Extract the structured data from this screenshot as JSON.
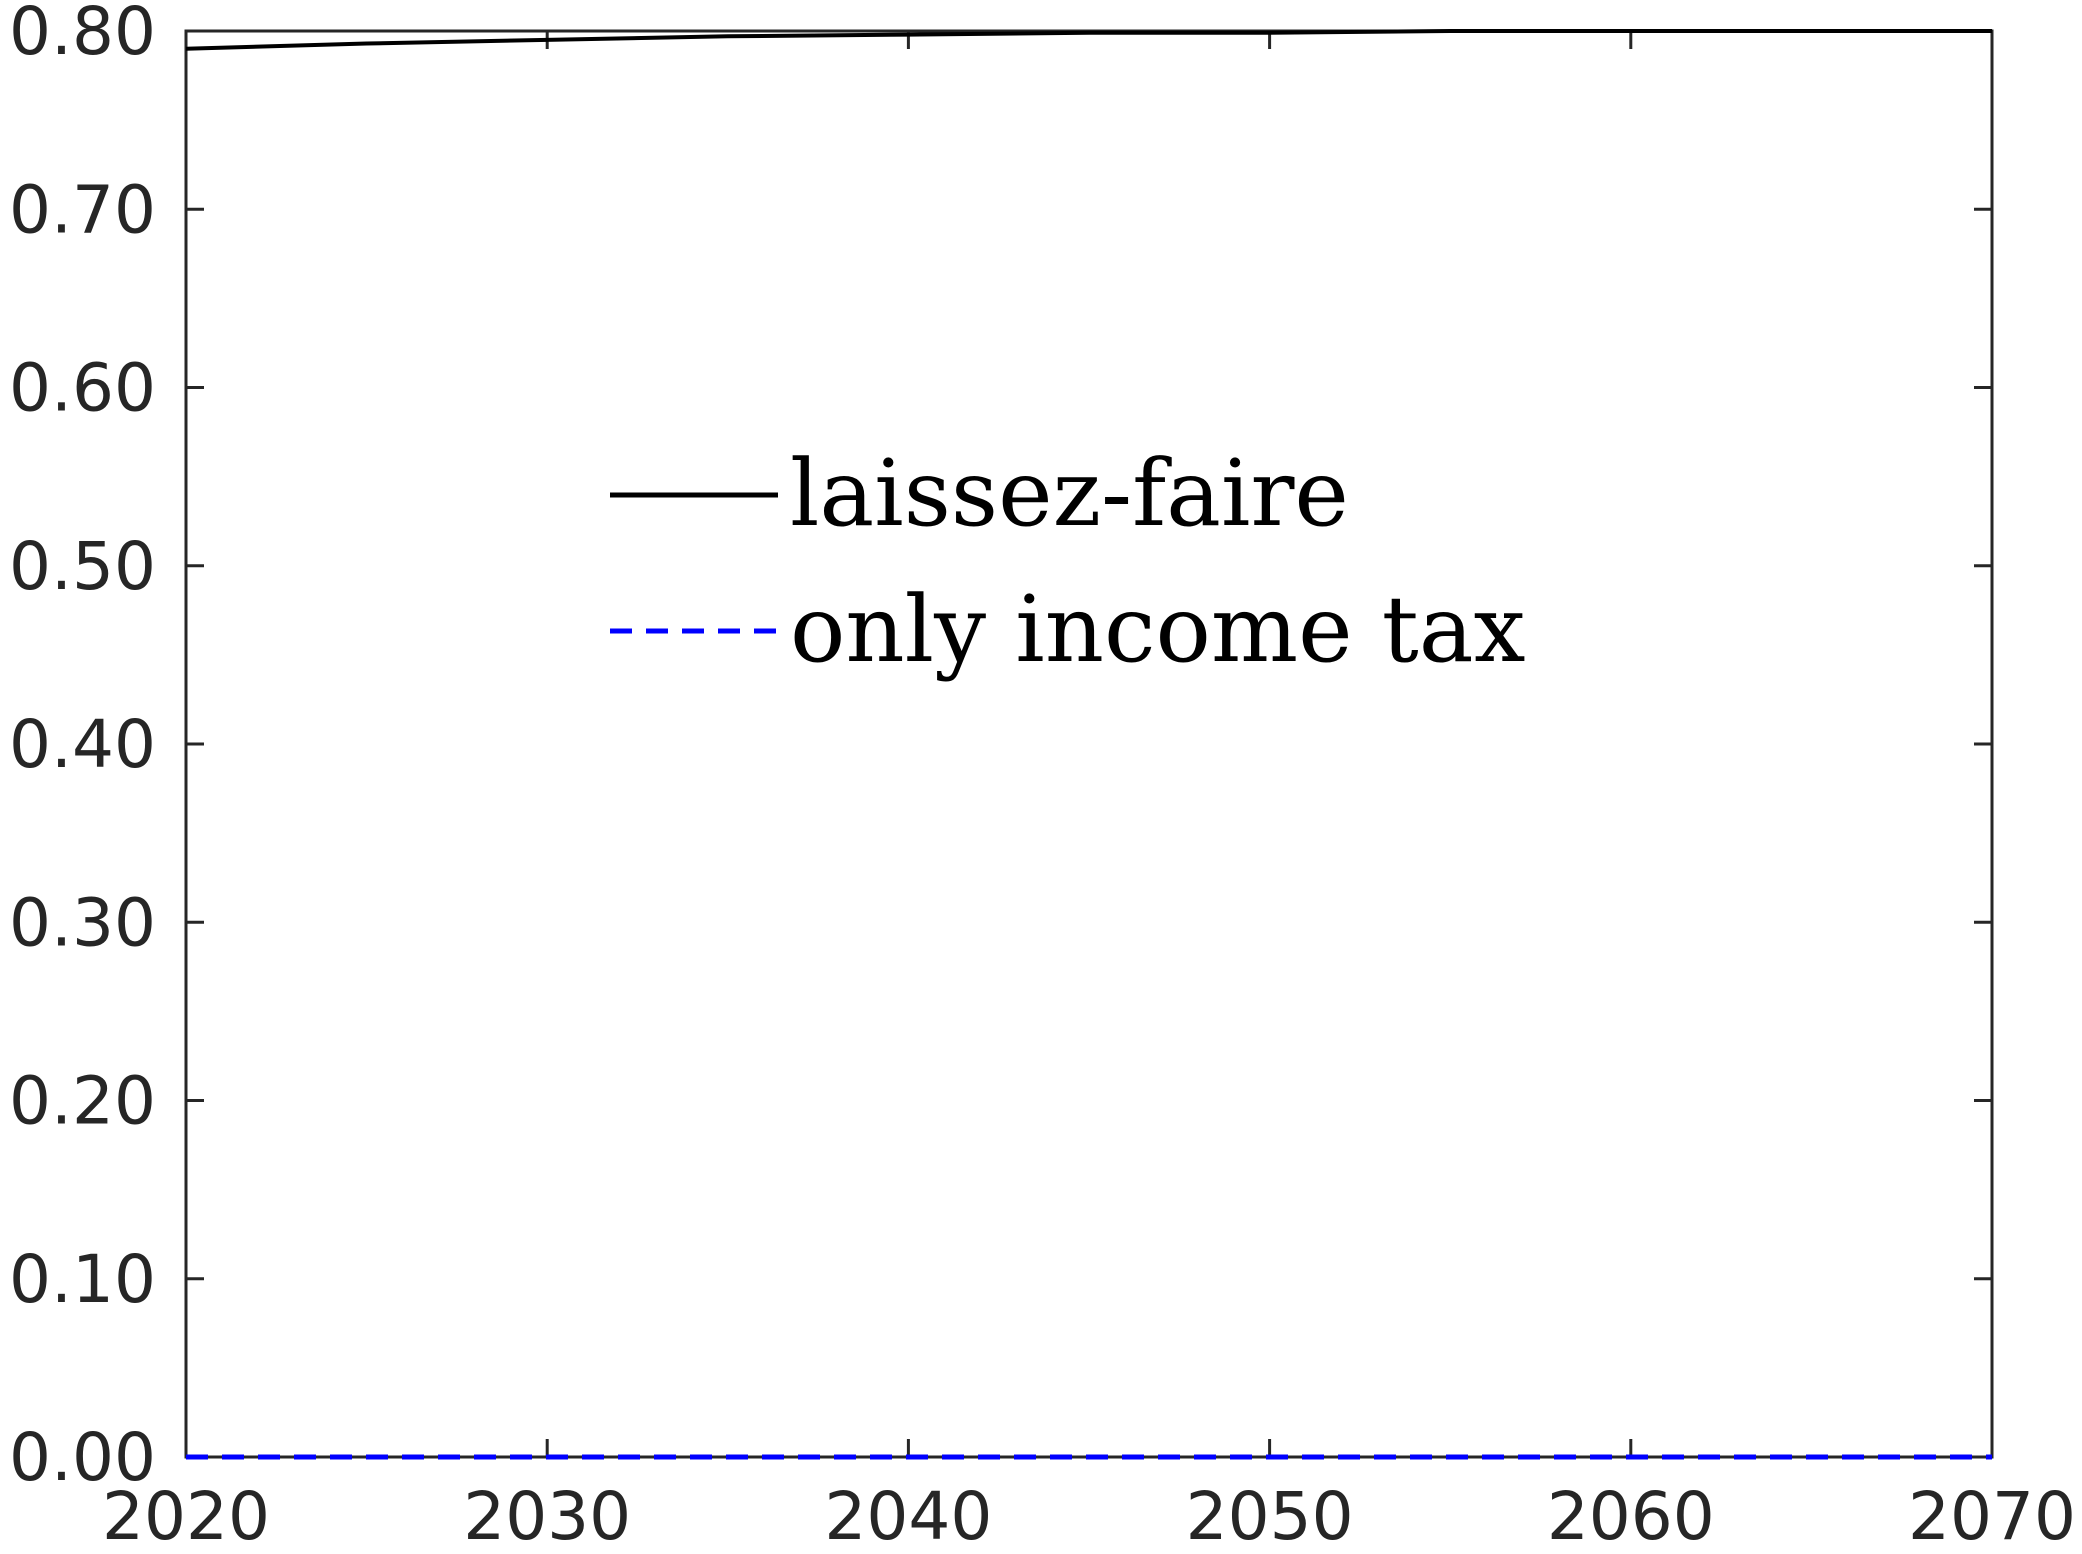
{
  "chart_data": {
    "type": "line",
    "title": "",
    "xlabel": "",
    "ylabel": "",
    "xlim": [
      2020,
      2070
    ],
    "ylim": [
      0,
      0.8
    ],
    "x_ticks": [
      "2020",
      "2030",
      "2040",
      "2050",
      "2060",
      "2070"
    ],
    "y_ticks": [
      "0.00",
      "0.10",
      "0.20",
      "0.30",
      "0.40",
      "0.50",
      "0.60",
      "0.70",
      "0.80"
    ],
    "grid": false,
    "legend_position": "upper-center",
    "series": [
      {
        "name": "laissez-faire",
        "color": "#000000",
        "style": "solid",
        "x": [
          2020,
          2025,
          2030,
          2035,
          2040,
          2045,
          2050,
          2055,
          2060,
          2065,
          2070
        ],
        "y": [
          0.79,
          0.793,
          0.795,
          0.797,
          0.798,
          0.799,
          0.799,
          0.8,
          0.8,
          0.8,
          0.8
        ]
      },
      {
        "name": "only income tax",
        "color": "#0000ff",
        "style": "dashed",
        "x": [
          2020,
          2025,
          2030,
          2035,
          2040,
          2045,
          2050,
          2055,
          2060,
          2065,
          2070
        ],
        "y": [
          0,
          0,
          0,
          0,
          0,
          0,
          0,
          0,
          0,
          0,
          0
        ]
      }
    ]
  }
}
